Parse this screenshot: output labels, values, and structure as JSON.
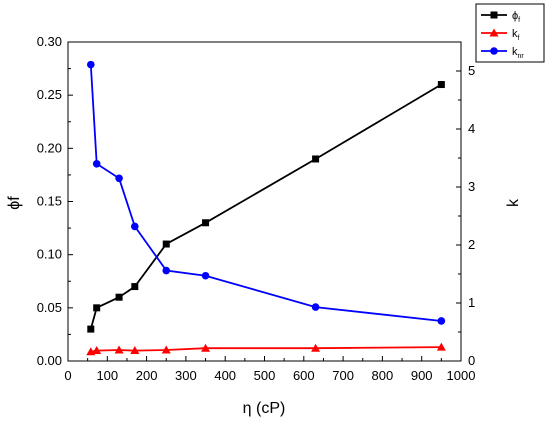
{
  "chart_data": {
    "type": "line",
    "xlabel": "η (cP)",
    "ylabel_left": "ϕf",
    "ylabel_right": "k",
    "xlim": [
      0,
      1000
    ],
    "ylim_left": [
      0,
      0.3
    ],
    "ylim_right": [
      0,
      5.5
    ],
    "x_ticks": [
      "0",
      "100",
      "200",
      "300",
      "400",
      "500",
      "600",
      "700",
      "800",
      "900",
      "1000"
    ],
    "y_left_ticks": [
      "0.00",
      "0.05",
      "0.10",
      "0.15",
      "0.20",
      "0.25",
      "0.30"
    ],
    "y_right_ticks": [
      "0",
      "1",
      "2",
      "3",
      "4",
      "5"
    ],
    "grid": false,
    "legend_position": "top-right",
    "series": [
      {
        "name": "ϕf",
        "legend_main": "ϕ",
        "legend_sub": "f",
        "axis": "left",
        "color": "#000000",
        "marker": "square",
        "x": [
          58,
          73,
          130,
          170,
          250,
          350,
          630,
          950
        ],
        "y": [
          0.03,
          0.05,
          0.06,
          0.07,
          0.11,
          0.13,
          0.19,
          0.26
        ]
      },
      {
        "name": "kf",
        "legend_main": "k",
        "legend_sub": "f",
        "axis": "right",
        "color": "#ff0000",
        "marker": "triangle",
        "x": [
          58,
          73,
          130,
          170,
          250,
          350,
          630,
          950
        ],
        "y": [
          0.16,
          0.18,
          0.19,
          0.18,
          0.19,
          0.22,
          0.22,
          0.24
        ]
      },
      {
        "name": "knr",
        "legend_main": "k",
        "legend_sub": "nr",
        "axis": "right",
        "color": "#0000ff",
        "marker": "circle",
        "x": [
          58,
          73,
          130,
          170,
          250,
          350,
          630,
          950
        ],
        "y": [
          5.11,
          3.4,
          3.15,
          2.32,
          1.56,
          1.47,
          0.93,
          0.69
        ]
      }
    ]
  }
}
